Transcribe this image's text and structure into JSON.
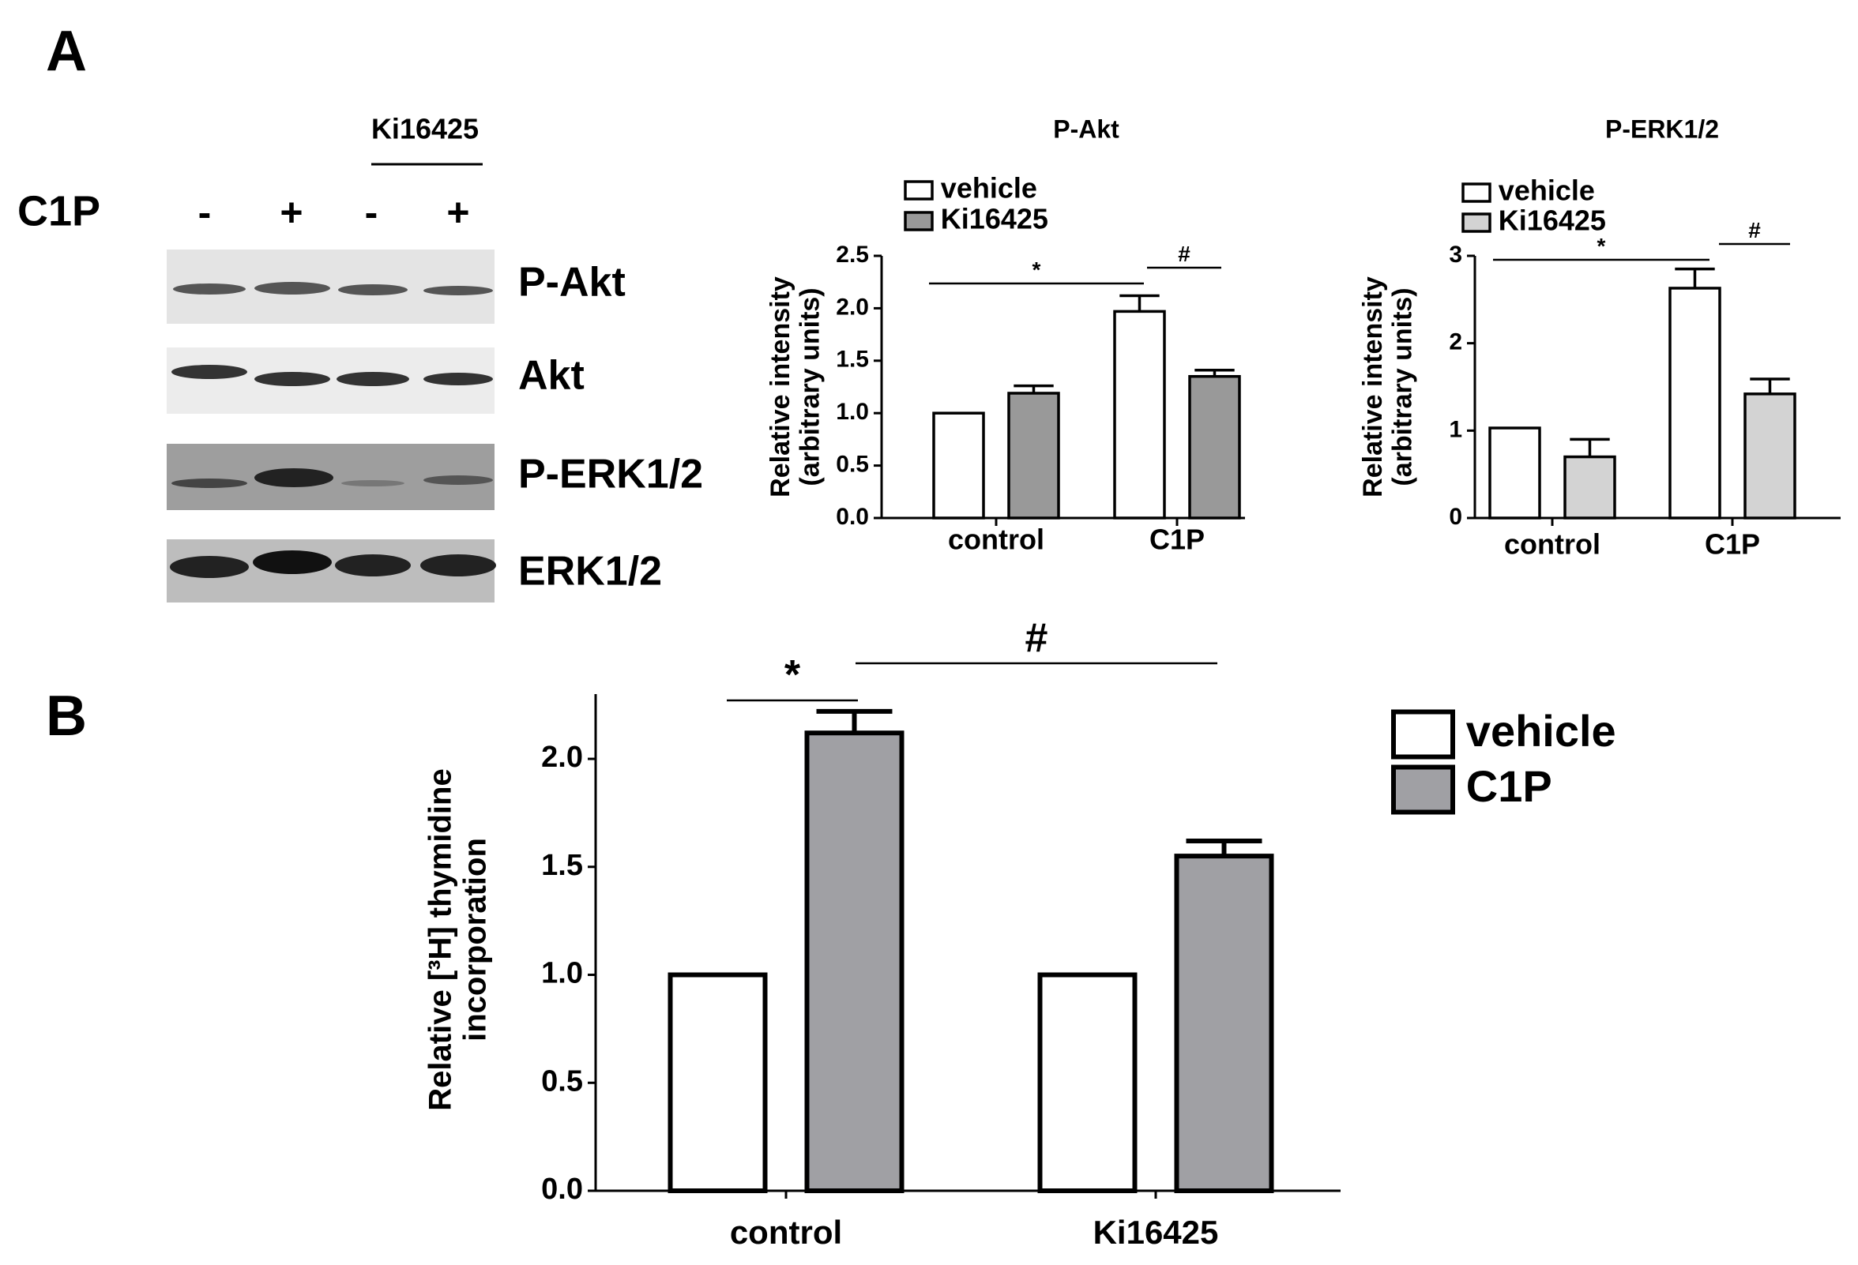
{
  "panels": [
    "A",
    "B"
  ],
  "blot": {
    "treatment_label": "Ki16425",
    "row_label": "C1P",
    "lanes": [
      "-",
      "+",
      "-",
      "+"
    ],
    "bands": [
      "P-Akt",
      "Akt",
      "P-ERK1/2",
      "ERK1/2"
    ]
  },
  "chart_data": [
    {
      "type": "bar",
      "title": "P-Akt",
      "ylabel": [
        "Relative intensity",
        "(arbitrary units)"
      ],
      "categories": [
        "control",
        "C1P"
      ],
      "series": [
        {
          "name": "vehicle",
          "color": "#ffffff",
          "values": [
            1.0,
            1.97
          ],
          "errors": [
            null,
            0.15
          ]
        },
        {
          "name": "Ki16425",
          "color": "#999999",
          "values": [
            1.19,
            1.35
          ],
          "errors": [
            0.07,
            0.06
          ]
        }
      ],
      "ylim": [
        0,
        2.5
      ],
      "yticks": [
        {
          "value": 0,
          "label": "0.0"
        },
        0.5,
        {
          "value": 1,
          "label": "1.0"
        },
        1.5,
        {
          "value": 2,
          "label": "2.0"
        },
        2.5
      ],
      "annotations": [
        "*",
        "#"
      ]
    },
    {
      "type": "bar",
      "title": "P-ERK1/2",
      "ylabel": [
        "Relative intensity",
        "(arbitrary units)"
      ],
      "categories": [
        "control",
        "C1P"
      ],
      "series": [
        {
          "name": "vehicle",
          "color": "#ffffff",
          "values": [
            1.03,
            2.63
          ],
          "errors": [
            null,
            0.22
          ]
        },
        {
          "name": "Ki16425",
          "color": "#d3d3d3",
          "values": [
            0.7,
            1.42
          ],
          "errors": [
            0.2,
            0.17
          ]
        }
      ],
      "ylim": [
        0,
        3
      ],
      "yticks": [
        0,
        1,
        2,
        3
      ],
      "annotations": [
        "*",
        "#"
      ]
    },
    {
      "type": "bar",
      "ylabel": [
        "Relative [³H] thymidine",
        "incorporation"
      ],
      "categories": [
        "control",
        "Ki16425"
      ],
      "series": [
        {
          "name": "vehicle",
          "color": "#ffffff",
          "values": [
            1.0,
            1.0
          ],
          "errors": [
            null,
            null
          ]
        },
        {
          "name": "C1P",
          "color": "#a0a0a4",
          "values": [
            2.12,
            1.55
          ],
          "errors": [
            0.1,
            0.07
          ]
        }
      ],
      "ylim": [
        0,
        2.3
      ],
      "yticks": [
        {
          "value": 0,
          "label": "0.0"
        },
        0.5,
        {
          "value": 1,
          "label": "1.0"
        },
        1.5,
        {
          "value": 2,
          "label": "2.0"
        }
      ],
      "annotations": [
        "*",
        "#"
      ]
    }
  ]
}
